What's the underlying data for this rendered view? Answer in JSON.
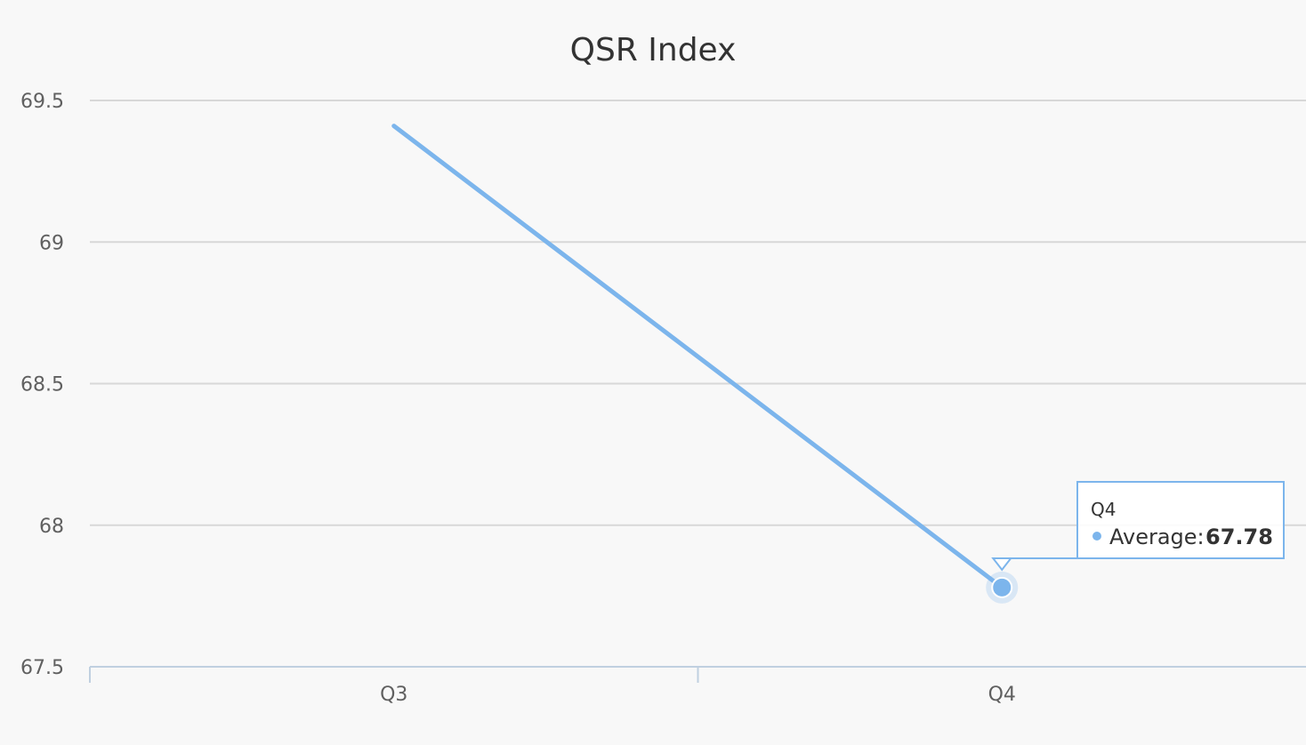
{
  "chart_data": {
    "type": "line",
    "title": "QSR Index",
    "categories": [
      "Q3",
      "Q4"
    ],
    "series": [
      {
        "name": "Average",
        "values": [
          69.41,
          67.78
        ],
        "color": "#7cb5ec"
      }
    ],
    "ylim": [
      67.5,
      69.5
    ],
    "yticks": [
      "67.5",
      "68",
      "68.5",
      "69",
      "69.5"
    ],
    "grid": true,
    "tooltip": {
      "category": "Q4",
      "series_label": "Average:",
      "value": "67.78"
    }
  }
}
